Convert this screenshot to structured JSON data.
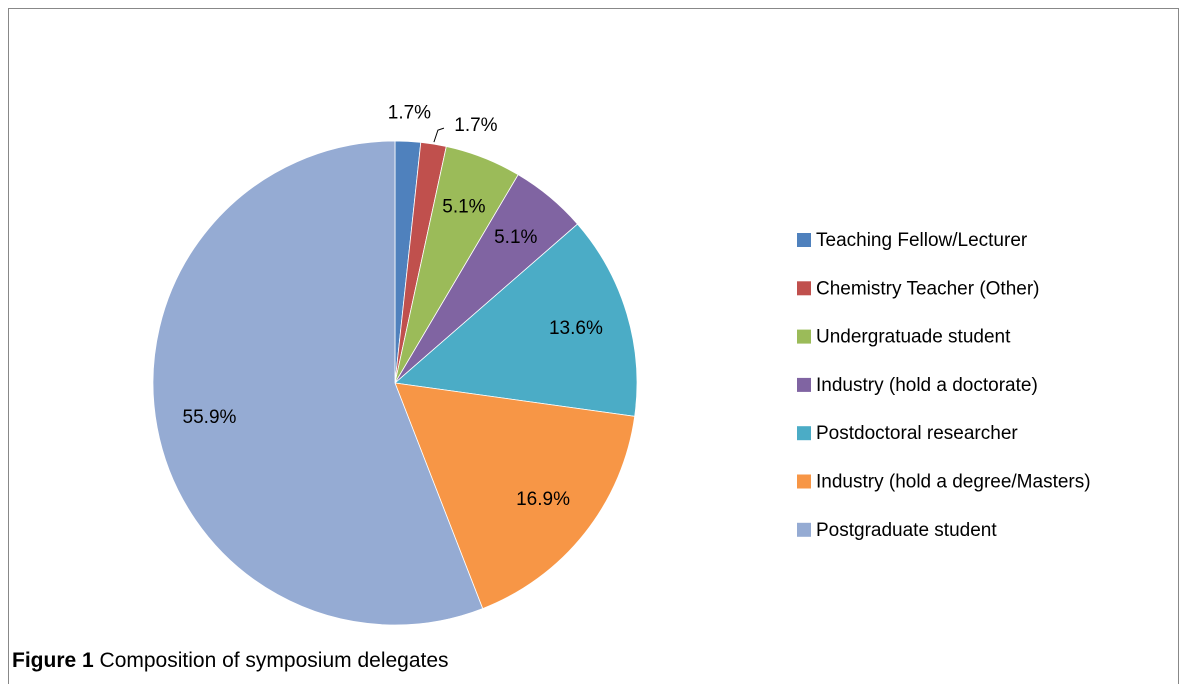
{
  "chart_data": {
    "type": "pie",
    "categories": [
      "Teaching Fellow/Lecturer",
      "Chemistry Teacher (Other)",
      "Undergratuade student",
      "Industry (hold a doctorate)",
      "Postdoctoral researcher",
      "Industry (hold a degree/Masters)",
      "Postgraduate student"
    ],
    "values": [
      1.7,
      1.7,
      5.1,
      5.1,
      13.6,
      16.9,
      55.9
    ],
    "value_labels": [
      "1.7%",
      "1.7%",
      "5.1%",
      "5.1%",
      "13.6%",
      "16.9%",
      "55.9%"
    ],
    "colors": [
      "#4f81bd",
      "#c0504d",
      "#9bbb59",
      "#8064a2",
      "#4bacc6",
      "#f79646",
      "#95abd3"
    ],
    "legend": "right"
  },
  "caption_label": "Figure 1",
  "caption": "Composition of symposium delegates"
}
